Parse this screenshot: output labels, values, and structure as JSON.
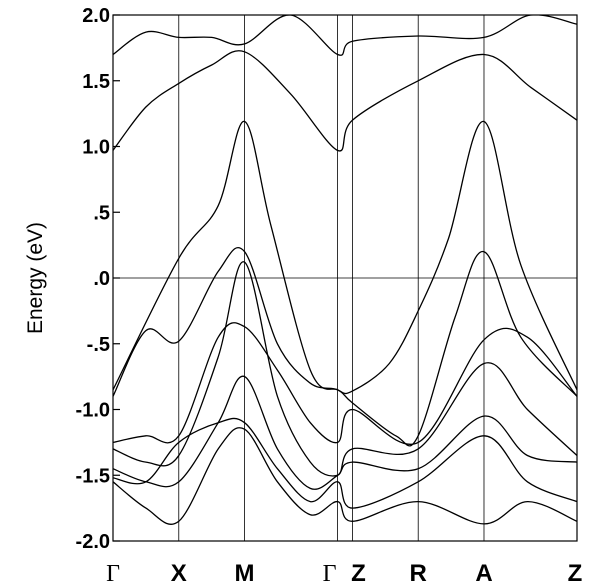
{
  "chart_data": {
    "type": "line",
    "title": "",
    "xlabel": "",
    "ylabel": "Energy (eV)",
    "ylim": [
      -2.0,
      2.0
    ],
    "y_ticks": [
      {
        "value": 2.0,
        "label": "2.0"
      },
      {
        "value": 1.5,
        "label": "1.5"
      },
      {
        "value": 1.0,
        "label": "1.0"
      },
      {
        "value": 0.5,
        "label": ".5"
      },
      {
        "value": 0.0,
        "label": ".0"
      },
      {
        "value": -0.5,
        "label": "-.5"
      },
      {
        "value": -1.0,
        "label": "-1.0"
      },
      {
        "value": -1.5,
        "label": "-1.5"
      },
      {
        "value": -2.0,
        "label": "-2.0"
      }
    ],
    "k_points": [
      {
        "label": "Γ",
        "x": 0.0
      },
      {
        "label": "X",
        "x": 1.0
      },
      {
        "label": "M",
        "x": 2.0
      },
      {
        "label": "Γ",
        "x": 3.414
      },
      {
        "label": "Z",
        "x": 3.64
      },
      {
        "label": "R",
        "x": 4.64
      },
      {
        "label": "A",
        "x": 5.64
      },
      {
        "label": "Z",
        "x": 7.054
      }
    ],
    "fermi_level": 0.0,
    "grid": false,
    "series": [
      {
        "x": [
          0.0,
          0.5,
          1.0,
          1.5,
          2.0,
          2.7,
          3.414,
          3.64,
          4.64,
          5.64,
          6.35,
          7.054
        ],
        "values": [
          1.7,
          1.87,
          1.83,
          1.83,
          1.78,
          2.0,
          1.7,
          1.8,
          1.84,
          1.83,
          2.0,
          1.93
        ]
      },
      {
        "x": [
          0.0,
          0.5,
          1.0,
          1.5,
          2.0,
          2.7,
          3.414,
          3.64,
          4.64,
          5.64,
          6.35,
          7.054
        ],
        "values": [
          0.97,
          1.3,
          1.48,
          1.62,
          1.72,
          1.4,
          0.97,
          1.2,
          1.5,
          1.7,
          1.45,
          1.2
        ]
      },
      {
        "x": [
          0.0,
          1.0,
          1.6,
          2.0,
          2.4,
          3.0,
          3.414,
          3.64,
          4.2,
          4.64,
          5.1,
          5.64,
          6.2,
          7.054
        ],
        "values": [
          -0.85,
          0.15,
          0.55,
          1.19,
          0.4,
          -0.7,
          -0.85,
          -0.86,
          -0.65,
          -0.25,
          0.3,
          1.19,
          0.1,
          -0.85
        ]
      },
      {
        "x": [
          0.0,
          0.5,
          1.0,
          1.6,
          2.0,
          2.5,
          3.0,
          3.414,
          3.64,
          4.3,
          4.64,
          5.2,
          5.64,
          6.2,
          7.054
        ],
        "values": [
          -0.9,
          -0.4,
          -0.48,
          0.05,
          0.2,
          -0.5,
          -0.8,
          -0.85,
          -0.95,
          -1.2,
          -1.2,
          -0.3,
          0.2,
          -0.45,
          -0.9
        ]
      },
      {
        "x": [
          0.0,
          0.5,
          1.0,
          1.6,
          2.0,
          2.5,
          3.0,
          3.414,
          3.64,
          4.64,
          5.64,
          6.3,
          7.054
        ],
        "values": [
          -1.25,
          -1.2,
          -1.2,
          -0.45,
          -0.37,
          -0.7,
          -1.1,
          -1.25,
          -1.0,
          -1.25,
          -0.47,
          -0.45,
          -0.9
        ]
      },
      {
        "x": [
          0.0,
          0.5,
          1.0,
          1.6,
          2.0,
          2.5,
          3.0,
          3.414,
          3.64,
          4.64,
          5.64,
          6.3,
          7.054
        ],
        "values": [
          -1.3,
          -1.4,
          -1.35,
          -0.6,
          0.12,
          -0.9,
          -1.4,
          -1.5,
          -1.3,
          -1.3,
          -0.65,
          -1.0,
          -1.35
        ]
      },
      {
        "x": [
          0.0,
          0.5,
          1.0,
          1.6,
          2.0,
          2.5,
          3.0,
          3.414,
          3.64,
          4.64,
          5.64,
          6.3,
          7.054
        ],
        "values": [
          -1.45,
          -1.55,
          -1.55,
          -1.1,
          -0.75,
          -1.3,
          -1.6,
          -1.5,
          -1.4,
          -1.45,
          -1.05,
          -1.35,
          -1.4
        ]
      },
      {
        "x": [
          0.0,
          0.5,
          1.0,
          1.6,
          2.0,
          2.5,
          3.0,
          3.414,
          3.64,
          4.64,
          5.64,
          6.3,
          7.054
        ],
        "values": [
          -1.52,
          -1.55,
          -1.25,
          -1.1,
          -1.1,
          -1.45,
          -1.7,
          -1.55,
          -1.75,
          -1.55,
          -1.2,
          -1.55,
          -1.7
        ]
      },
      {
        "x": [
          0.0,
          0.5,
          1.0,
          1.6,
          2.0,
          2.5,
          3.0,
          3.414,
          3.64,
          4.64,
          5.64,
          6.3,
          7.054
        ],
        "values": [
          -1.55,
          -1.75,
          -1.85,
          -1.3,
          -1.15,
          -1.55,
          -1.8,
          -1.7,
          -1.85,
          -1.7,
          -1.87,
          -1.7,
          -1.85
        ]
      }
    ]
  }
}
